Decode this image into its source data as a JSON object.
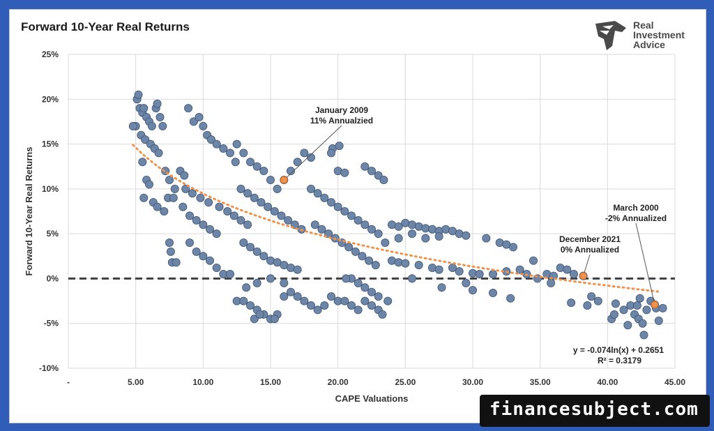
{
  "chart_data": {
    "type": "scatter",
    "title": "Forward 10-Year Real Returns",
    "xlabel": "CAPE Valuations",
    "ylabel": "Forward 10-Year Real Returns",
    "xlim": [
      0,
      45
    ],
    "ylim": [
      -0.1,
      0.25
    ],
    "x_ticks": [
      0,
      5,
      10,
      15,
      20,
      25,
      30,
      35,
      40,
      45
    ],
    "x_tick_labels": [
      "-",
      "5.00",
      "10.00",
      "15.00",
      "20.00",
      "25.00",
      "30.00",
      "35.00",
      "40.00",
      "45.00"
    ],
    "y_ticks": [
      -0.1,
      -0.05,
      0,
      0.05,
      0.1,
      0.15,
      0.2,
      0.25
    ],
    "y_tick_labels": [
      "-10%",
      "-5%",
      "0%",
      "5%",
      "10%",
      "15%",
      "20%",
      "25%"
    ],
    "grid": true,
    "series_color": "#6d86a8",
    "trend_color": "#f0924c",
    "zero_line_color": "#404040",
    "trendline": {
      "type": "logarithmic",
      "a": -0.074,
      "b": 0.2651,
      "x_range": [
        4.8,
        43.8
      ],
      "equation": "y = -0.074ln(x) + 0.2651",
      "r_squared": "R² = 0.3179"
    },
    "points": [
      [
        5.1,
        0.2
      ],
      [
        5.2,
        0.205
      ],
      [
        5.3,
        0.19
      ],
      [
        5.5,
        0.185
      ],
      [
        5.0,
        0.17
      ],
      [
        4.8,
        0.17
      ],
      [
        5.6,
        0.19
      ],
      [
        5.8,
        0.18
      ],
      [
        6.0,
        0.175
      ],
      [
        6.2,
        0.17
      ],
      [
        6.5,
        0.19
      ],
      [
        6.6,
        0.195
      ],
      [
        6.8,
        0.18
      ],
      [
        7.0,
        0.17
      ],
      [
        5.4,
        0.16
      ],
      [
        5.7,
        0.155
      ],
      [
        6.1,
        0.15
      ],
      [
        6.4,
        0.145
      ],
      [
        6.7,
        0.14
      ],
      [
        5.5,
        0.13
      ],
      [
        5.6,
        0.09
      ],
      [
        5.8,
        0.11
      ],
      [
        6.0,
        0.105
      ],
      [
        6.3,
        0.085
      ],
      [
        6.6,
        0.08
      ],
      [
        7.1,
        0.075
      ],
      [
        7.4,
        0.09
      ],
      [
        7.8,
        0.09
      ],
      [
        7.5,
        0.04
      ],
      [
        7.6,
        0.03
      ],
      [
        7.7,
        0.018
      ],
      [
        8.0,
        0.018
      ],
      [
        7.2,
        0.12
      ],
      [
        7.5,
        0.11
      ],
      [
        7.9,
        0.1
      ],
      [
        8.3,
        0.12
      ],
      [
        8.6,
        0.115
      ],
      [
        8.9,
        0.19
      ],
      [
        9.3,
        0.175
      ],
      [
        9.7,
        0.18
      ],
      [
        10.0,
        0.17
      ],
      [
        10.3,
        0.16
      ],
      [
        10.6,
        0.155
      ],
      [
        11.0,
        0.15
      ],
      [
        11.5,
        0.145
      ],
      [
        12.0,
        0.14
      ],
      [
        12.4,
        0.13
      ],
      [
        8.5,
        0.08
      ],
      [
        9.0,
        0.07
      ],
      [
        9.5,
        0.065
      ],
      [
        10.0,
        0.06
      ],
      [
        10.5,
        0.055
      ],
      [
        11.0,
        0.05
      ],
      [
        9.0,
        0.04
      ],
      [
        9.5,
        0.03
      ],
      [
        10.0,
        0.025
      ],
      [
        10.5,
        0.02
      ],
      [
        11.0,
        0.012
      ],
      [
        11.5,
        0.005
      ],
      [
        12.0,
        0.005
      ],
      [
        8.7,
        0.1
      ],
      [
        9.2,
        0.095
      ],
      [
        9.8,
        0.09
      ],
      [
        10.4,
        0.085
      ],
      [
        11.2,
        0.08
      ],
      [
        11.8,
        0.075
      ],
      [
        12.3,
        0.07
      ],
      [
        12.8,
        0.065
      ],
      [
        13.3,
        0.06
      ],
      [
        12.5,
        0.15
      ],
      [
        13.0,
        0.14
      ],
      [
        13.5,
        0.13
      ],
      [
        14.0,
        0.125
      ],
      [
        14.5,
        0.12
      ],
      [
        15.0,
        0.11
      ],
      [
        15.5,
        0.1
      ],
      [
        16.0,
        0.11
      ],
      [
        16.5,
        0.12
      ],
      [
        17.0,
        0.13
      ],
      [
        17.5,
        0.14
      ],
      [
        18.0,
        0.135
      ],
      [
        12.8,
        0.1
      ],
      [
        13.3,
        0.095
      ],
      [
        13.8,
        0.09
      ],
      [
        14.3,
        0.085
      ],
      [
        14.8,
        0.08
      ],
      [
        15.3,
        0.075
      ],
      [
        15.8,
        0.07
      ],
      [
        16.3,
        0.065
      ],
      [
        16.8,
        0.06
      ],
      [
        17.3,
        0.055
      ],
      [
        13.0,
        0.04
      ],
      [
        13.5,
        0.035
      ],
      [
        14.0,
        0.03
      ],
      [
        14.5,
        0.025
      ],
      [
        15.0,
        0.02
      ],
      [
        15.5,
        0.018
      ],
      [
        16.0,
        0.015
      ],
      [
        16.5,
        0.012
      ],
      [
        17.0,
        0.01
      ],
      [
        12.5,
        -0.025
      ],
      [
        13.0,
        -0.025
      ],
      [
        13.5,
        -0.03
      ],
      [
        14.0,
        -0.035
      ],
      [
        14.5,
        -0.04
      ],
      [
        15.0,
        -0.045
      ],
      [
        15.5,
        -0.04
      ],
      [
        13.8,
        -0.045
      ],
      [
        14.2,
        -0.04
      ],
      [
        15.3,
        -0.045
      ],
      [
        16.0,
        -0.02
      ],
      [
        16.5,
        -0.015
      ],
      [
        17.0,
        -0.02
      ],
      [
        17.5,
        -0.025
      ],
      [
        18.0,
        -0.03
      ],
      [
        18.5,
        -0.035
      ],
      [
        19.0,
        -0.03
      ],
      [
        13.2,
        -0.01
      ],
      [
        14.0,
        -0.005
      ],
      [
        15.0,
        0.0
      ],
      [
        16.0,
        -0.005
      ],
      [
        18.0,
        0.1
      ],
      [
        18.5,
        0.095
      ],
      [
        19.0,
        0.09
      ],
      [
        19.5,
        0.085
      ],
      [
        20.0,
        0.08
      ],
      [
        20.5,
        0.075
      ],
      [
        21.0,
        0.07
      ],
      [
        21.5,
        0.065
      ],
      [
        22.0,
        0.06
      ],
      [
        22.5,
        0.055
      ],
      [
        23.0,
        0.05
      ],
      [
        18.3,
        0.06
      ],
      [
        18.8,
        0.055
      ],
      [
        19.3,
        0.05
      ],
      [
        19.8,
        0.045
      ],
      [
        20.3,
        0.04
      ],
      [
        20.8,
        0.035
      ],
      [
        21.3,
        0.03
      ],
      [
        21.8,
        0.025
      ],
      [
        22.3,
        0.02
      ],
      [
        22.8,
        0.015
      ],
      [
        19.6,
        0.145
      ],
      [
        20.1,
        0.148
      ],
      [
        20.0,
        0.12
      ],
      [
        20.5,
        0.118
      ],
      [
        22.0,
        0.125
      ],
      [
        22.5,
        0.12
      ],
      [
        23.0,
        0.115
      ],
      [
        23.4,
        0.11
      ],
      [
        19.5,
        0.14
      ],
      [
        19.5,
        -0.02
      ],
      [
        20.0,
        -0.025
      ],
      [
        20.5,
        -0.025
      ],
      [
        21.0,
        -0.03
      ],
      [
        21.5,
        -0.035
      ],
      [
        22.0,
        -0.025
      ],
      [
        22.5,
        -0.03
      ],
      [
        23.0,
        -0.035
      ],
      [
        23.3,
        -0.04
      ],
      [
        23.7,
        -0.025
      ],
      [
        21.0,
        0.0
      ],
      [
        21.5,
        -0.005
      ],
      [
        22.0,
        -0.01
      ],
      [
        22.5,
        -0.015
      ],
      [
        23.0,
        -0.02
      ],
      [
        20.6,
        0.0
      ],
      [
        24.0,
        0.06
      ],
      [
        24.5,
        0.058
      ],
      [
        25.0,
        0.062
      ],
      [
        25.5,
        0.06
      ],
      [
        26.0,
        0.058
      ],
      [
        26.5,
        0.056
      ],
      [
        27.0,
        0.055
      ],
      [
        27.5,
        0.053
      ],
      [
        28.0,
        0.055
      ],
      [
        28.5,
        0.053
      ],
      [
        29.0,
        0.05
      ],
      [
        29.5,
        0.048
      ],
      [
        23.5,
        0.04
      ],
      [
        24.5,
        0.045
      ],
      [
        25.5,
        0.05
      ],
      [
        26.5,
        0.045
      ],
      [
        27.5,
        0.047
      ],
      [
        24.0,
        0.02
      ],
      [
        24.5,
        0.018
      ],
      [
        25.0,
        0.017
      ],
      [
        26.0,
        0.015
      ],
      [
        27.0,
        0.012
      ],
      [
        27.5,
        0.01
      ],
      [
        28.5,
        0.012
      ],
      [
        29.0,
        0.008
      ],
      [
        30.0,
        0.006
      ],
      [
        25.5,
        0.0
      ],
      [
        27.7,
        -0.01
      ],
      [
        29.5,
        -0.005
      ],
      [
        30.5,
        0.005
      ],
      [
        31.0,
        0.045
      ],
      [
        32.0,
        0.04
      ],
      [
        32.5,
        0.038
      ],
      [
        33.0,
        0.035
      ],
      [
        31.5,
        0.005
      ],
      [
        32.5,
        0.008
      ],
      [
        33.5,
        0.01
      ],
      [
        34.0,
        0.005
      ],
      [
        34.5,
        0.02
      ],
      [
        35.5,
        0.005
      ],
      [
        36.0,
        0.003
      ],
      [
        36.5,
        0.012
      ],
      [
        37.0,
        0.01
      ],
      [
        37.5,
        0.005
      ],
      [
        30.0,
        -0.013
      ],
      [
        31.5,
        -0.016
      ],
      [
        32.8,
        -0.022
      ],
      [
        34.8,
        0.0
      ],
      [
        35.8,
        -0.005
      ],
      [
        37.3,
        -0.027
      ],
      [
        38.2,
        0.003
      ],
      [
        38.5,
        -0.03
      ],
      [
        38.8,
        -0.02
      ],
      [
        39.3,
        -0.025
      ],
      [
        40.3,
        -0.045
      ],
      [
        40.5,
        -0.04
      ],
      [
        40.6,
        -0.028
      ],
      [
        41.2,
        -0.035
      ],
      [
        41.5,
        -0.052
      ],
      [
        41.7,
        -0.03
      ],
      [
        42.0,
        -0.04
      ],
      [
        42.2,
        -0.03
      ],
      [
        42.3,
        -0.045
      ],
      [
        42.6,
        -0.05
      ],
      [
        42.7,
        -0.063
      ],
      [
        42.9,
        -0.035
      ],
      [
        43.2,
        -0.025
      ],
      [
        43.5,
        -0.029
      ],
      [
        43.6,
        -0.033
      ],
      [
        43.8,
        -0.047
      ],
      [
        44.1,
        -0.033
      ],
      [
        42.4,
        -0.022
      ]
    ],
    "annotations": [
      {
        "line1": "January 2009",
        "line2": "11% Annualzied",
        "x": 16.0,
        "y": 0.11
      },
      {
        "line1": "March 2000",
        "line2": "-2% Annualized",
        "x": 43.5,
        "y": -0.029
      },
      {
        "line1": "December 2021",
        "line2": "0% Annualized",
        "x": 38.2,
        "y": 0.003
      }
    ]
  },
  "logo": {
    "line1": "Real",
    "line2": "Investment",
    "line3": "Advice"
  },
  "watermark": "financesubject.com"
}
